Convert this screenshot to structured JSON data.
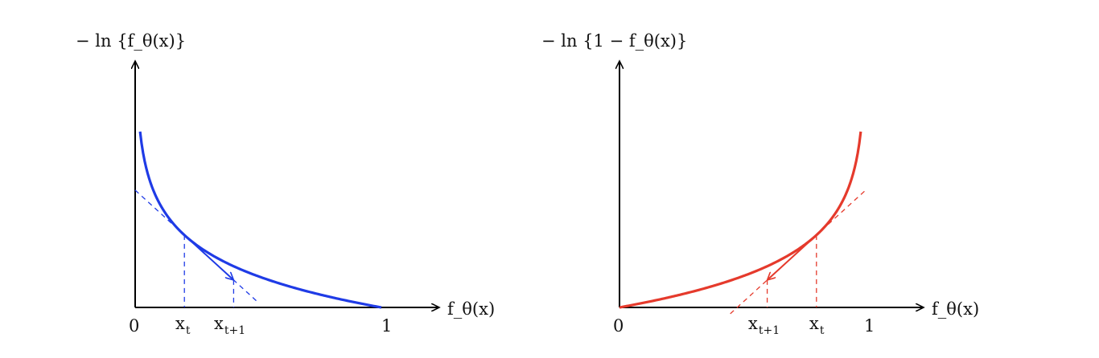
{
  "left_panel": {
    "y_label": "− ln {f_θ(x)}",
    "x_label": "f_θ(x)",
    "tick_zero": "0",
    "tick_one": "1",
    "point_t": {
      "base": "x",
      "sub": "t"
    },
    "point_t1": {
      "base": "x",
      "sub": "t+1"
    },
    "curve_color": "#1f3be6"
  },
  "right_panel": {
    "y_label": "− ln {1 − f_θ(x)}",
    "x_label": "f_θ(x)",
    "tick_zero": "0",
    "tick_one": "1",
    "point_t": {
      "base": "x",
      "sub": "t"
    },
    "point_t1": {
      "base": "x",
      "sub": "t+1"
    },
    "curve_color": "#e53a2c"
  },
  "chart_data": [
    {
      "type": "line",
      "series": [
        {
          "function": "-ln(x)",
          "x_range": [
            0.02,
            1
          ]
        }
      ],
      "marked_x": {
        "x_t": 0.2,
        "x_t+1": 0.4
      },
      "tangent_at": 0.2,
      "x_ticks": [
        "0",
        "1"
      ]
    },
    {
      "type": "line",
      "series": [
        {
          "function": "-ln(1-x)",
          "x_range": [
            0,
            0.98
          ]
        }
      ],
      "marked_x": {
        "x_t": 0.8,
        "x_t+1": 0.6
      },
      "tangent_at": 0.8,
      "x_ticks": [
        "0",
        "1"
      ]
    }
  ]
}
